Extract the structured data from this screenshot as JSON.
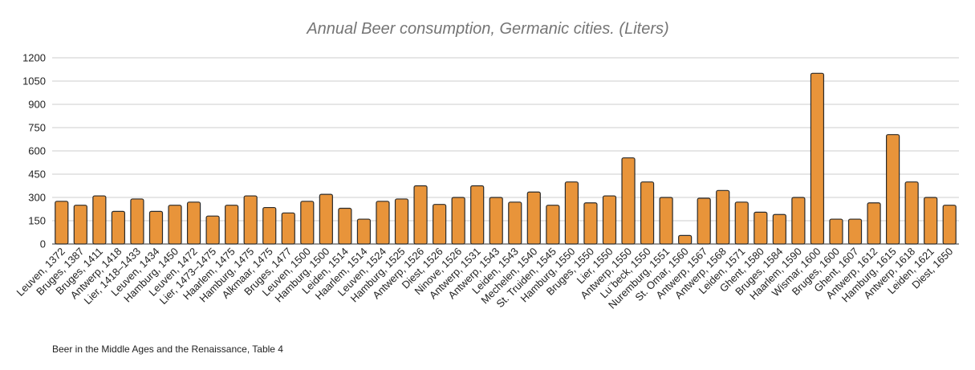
{
  "chart_data": {
    "type": "bar",
    "title": "Annual Beer consumption, Germanic cities. (Liters)",
    "xlabel": "",
    "ylabel": "",
    "ylim": [
      0,
      1200
    ],
    "yticks": [
      0,
      150,
      300,
      450,
      600,
      750,
      900,
      1050,
      1200
    ],
    "grid": true,
    "legend": "none",
    "bar_color": "#E8943A",
    "bar_outline_color": "#2B2B2B",
    "categories": [
      "Leuven, 1372",
      "Bruges, 1387",
      "Bruges, 1411",
      "Antwerp, 1418",
      "Lier, 1418–1433",
      "Leuven, 1434",
      "Hamburg, 1450",
      "Leuven, 1472",
      "Lier, 1473–1475",
      "Haarlem, 1475",
      "Hamburg, 1475",
      "Alkmaar, 1475",
      "Bruges, 1477",
      "Leuven, 1500",
      "Hamburg, 1500",
      "Leiden, 1514",
      "Haarlem, 1514",
      "Leuven, 1524",
      "Hamburg, 1525",
      "Antwerp, 1526",
      "Diest, 1526",
      "Ninove, 1526",
      "Antwerp, 1531",
      "Antwerp, 1543",
      "Leiden, 1543",
      "Mechelen, 1540",
      "St. Truiden, 1545",
      "Hamburg, 1550",
      "Bruges, 1550",
      "Lier, 1550",
      "Antwerp, 1550",
      "Lu¨beck, 1550",
      "Nuremburg, 1551",
      "St. Omar, 1560",
      "Antwerp, 1567",
      "Antwerp, 1568",
      "Leiden, 1571",
      "Ghent, 1580",
      "Bruges, 1584",
      "Haarlem, 1590",
      "Wismar, 1600",
      "Bruges, 1600",
      "Ghent, 1607",
      "Antwerp, 1612",
      "Hamburg, 1615",
      "Antwerp, 1618",
      "Leiden, 1621",
      "Diest, 1650"
    ],
    "values": [
      275,
      250,
      310,
      210,
      290,
      210,
      250,
      270,
      180,
      250,
      310,
      235,
      200,
      275,
      320,
      230,
      160,
      275,
      290,
      375,
      255,
      300,
      375,
      300,
      270,
      335,
      250,
      400,
      265,
      310,
      555,
      400,
      300,
      55,
      295,
      345,
      270,
      205,
      190,
      300,
      1100,
      160,
      160,
      265,
      705,
      400,
      300,
      250
    ]
  },
  "source_note": "Beer in the Middle Ages and the Renaissance, Table 4"
}
